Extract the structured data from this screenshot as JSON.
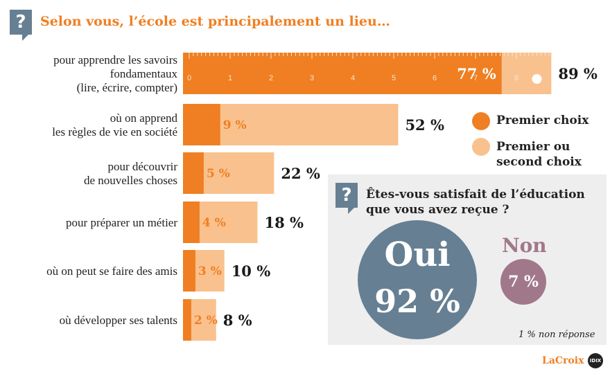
{
  "header": {
    "badge": "?",
    "title": "Selon vous, l’école est principalement un lieu…"
  },
  "colors": {
    "first_choice": "#ef7f22",
    "first_or_second": "#f9c18e",
    "oui": "#667f93",
    "non": "#a1788a"
  },
  "chart_data": {
    "type": "bar",
    "orientation": "horizontal",
    "stacked": "overlay",
    "categories": [
      [
        "pour apprendre les savoirs",
        "fondamentaux",
        "(lire, écrire, compter)"
      ],
      [
        "où on apprend",
        "les règles de vie en société"
      ],
      [
        "pour découvrir",
        "de nouvelles choses"
      ],
      [
        "pour préparer un métier"
      ],
      [
        "où on peut se faire des amis"
      ],
      [
        "où développer ses talents"
      ]
    ],
    "series": [
      {
        "name": "Premier choix",
        "values": [
          77,
          9,
          5,
          4,
          3,
          2
        ],
        "labels": [
          "77 %",
          "9 %",
          "5 %",
          "4 %",
          "3 %",
          "2 %"
        ]
      },
      {
        "name": "Premier ou second choix",
        "values": [
          89,
          52,
          22,
          18,
          10,
          8
        ],
        "labels": [
          "89 %",
          "52 %",
          "22 %",
          "18 %",
          "10 %",
          "8 %"
        ]
      }
    ],
    "scale_ticks": [
      "0",
      "1",
      "2",
      "3",
      "4",
      "5",
      "6",
      "7",
      "8"
    ]
  },
  "legend": {
    "first": "Premier choix",
    "second_l1": "Premier ou",
    "second_l2": "second choix"
  },
  "survey": {
    "badge": "?",
    "question_l1": "Êtes-vous satisfait de l’éducation",
    "question_l2": "que vous avez reçue ?",
    "oui_label": "Oui",
    "oui_value": "92 %",
    "non_label": "Non",
    "non_value": "7 %",
    "no_response": "1 % non réponse"
  },
  "footer": {
    "brand": "LaCroix",
    "badge": "IDIX"
  }
}
